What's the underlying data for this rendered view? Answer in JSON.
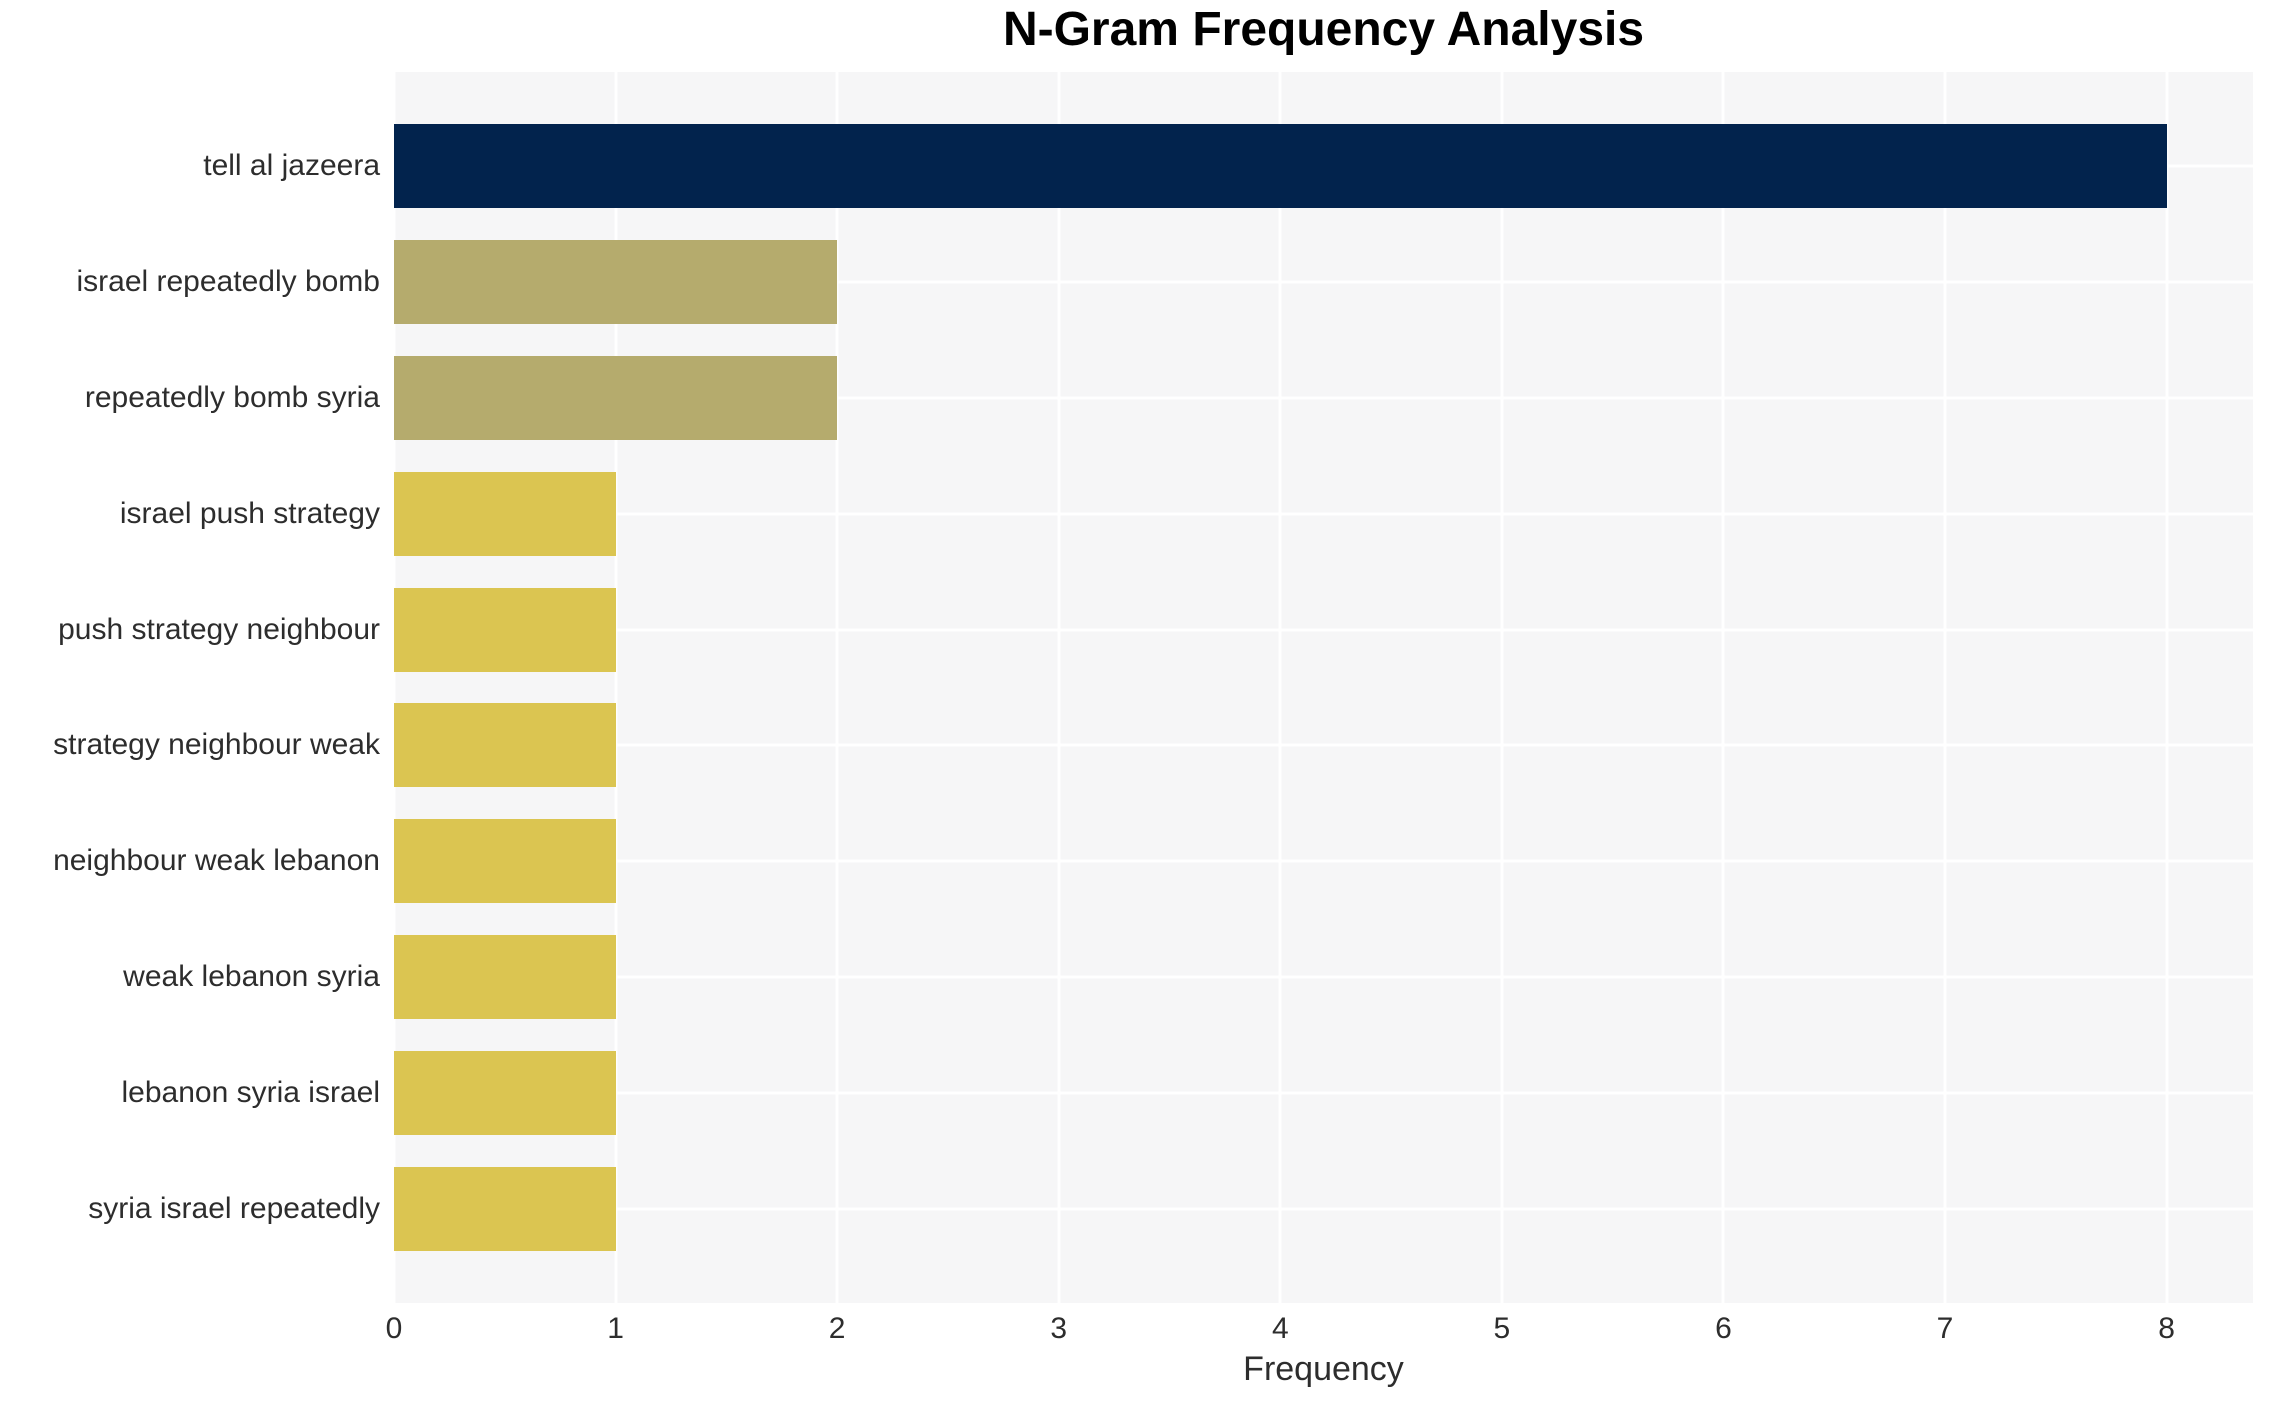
{
  "chart_data": {
    "type": "bar",
    "orientation": "horizontal",
    "title": "N-Gram Frequency Analysis",
    "xlabel": "Frequency",
    "ylabel": "",
    "categories": [
      "tell al jazeera",
      "israel repeatedly bomb",
      "repeatedly bomb syria",
      "israel push strategy",
      "push strategy neighbour",
      "strategy neighbour weak",
      "neighbour weak lebanon",
      "weak lebanon syria",
      "lebanon syria israel",
      "syria israel repeatedly"
    ],
    "values": [
      8,
      2,
      2,
      1,
      1,
      1,
      1,
      1,
      1,
      1
    ],
    "bar_colors": [
      "#02234d",
      "#b5ab6d",
      "#b5ab6d",
      "#dbc551",
      "#dbc551",
      "#dbc551",
      "#dbc551",
      "#dbc551",
      "#dbc551",
      "#dbc551"
    ],
    "xticks": [
      0,
      1,
      2,
      3,
      4,
      5,
      6,
      7,
      8
    ],
    "xlim": [
      0,
      8.39
    ],
    "grid": "white gridlines on light gray panel, vertical at integer ticks, horizontal at category centers",
    "legend_position": "none"
  },
  "colors": {
    "figure_background": "#ffffff",
    "plot_background": "#f6f6f7",
    "grid_line": "#ffffff",
    "text": "#2d2d2d",
    "title_text": "#000000"
  }
}
